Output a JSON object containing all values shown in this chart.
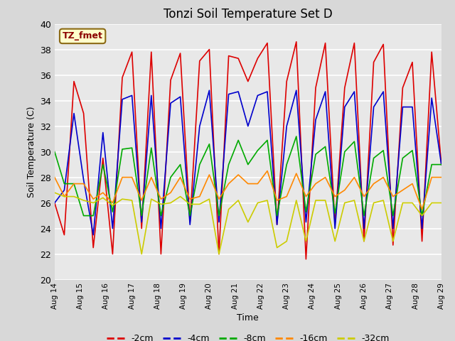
{
  "title": "Tonzi Soil Temperature Set D",
  "xlabel": "Time",
  "ylabel": "Soil Temperature (C)",
  "ylim": [
    20,
    40
  ],
  "background_color": "#e8e8e8",
  "legend_label": "TZ_fmet",
  "x_tick_labels": [
    "Aug 14",
    "Aug 15",
    "Aug 16",
    "Aug 17",
    "Aug 18",
    "Aug 19",
    "Aug 20",
    "Aug 21",
    "Aug 22",
    "Aug 23",
    "Aug 24",
    "Aug 25",
    "Aug 26",
    "Aug 27",
    "Aug 28",
    "Aug 29"
  ],
  "series": {
    "-2cm": {
      "color": "#dd0000",
      "data": [
        26.0,
        23.5,
        35.5,
        33.0,
        22.5,
        29.5,
        22.0,
        35.8,
        37.8,
        24.0,
        37.8,
        22.0,
        35.6,
        37.7,
        24.5,
        37.1,
        38.0,
        22.0,
        37.5,
        37.3,
        35.5,
        37.3,
        38.5,
        24.3,
        35.5,
        38.6,
        21.6,
        35.0,
        38.5,
        24.3,
        35.0,
        38.5,
        23.0,
        37.0,
        38.4,
        22.7,
        35.0,
        37.0,
        23.0,
        37.8,
        29.0
      ]
    },
    "-4cm": {
      "color": "#0000cc",
      "data": [
        26.0,
        27.0,
        33.0,
        27.8,
        23.5,
        31.5,
        24.0,
        34.1,
        34.4,
        24.5,
        34.4,
        24.0,
        33.8,
        34.3,
        24.3,
        32.0,
        34.8,
        24.5,
        34.5,
        34.7,
        32.0,
        34.4,
        34.7,
        24.3,
        32.0,
        34.8,
        24.5,
        32.5,
        34.7,
        24.0,
        33.5,
        34.7,
        24.0,
        33.5,
        34.7,
        24.0,
        33.5,
        33.5,
        24.0,
        34.2,
        29.0
      ]
    },
    "-8cm": {
      "color": "#00aa00",
      "data": [
        30.0,
        27.5,
        27.5,
        25.0,
        25.0,
        29.0,
        25.3,
        30.2,
        30.3,
        25.0,
        30.3,
        25.0,
        28.0,
        29.0,
        25.0,
        29.0,
        30.6,
        25.0,
        29.0,
        30.9,
        29.0,
        30.1,
        30.9,
        25.0,
        29.0,
        31.2,
        25.3,
        29.8,
        30.4,
        25.2,
        30.0,
        30.8,
        25.0,
        29.5,
        30.1,
        25.0,
        29.5,
        30.1,
        25.0,
        29.0,
        29.0
      ]
    },
    "-16cm": {
      "color": "#ff8800",
      "data": [
        28.0,
        26.5,
        27.5,
        27.5,
        26.3,
        26.8,
        26.0,
        28.0,
        28.0,
        26.2,
        28.0,
        26.3,
        26.8,
        28.0,
        26.3,
        26.5,
        28.2,
        26.3,
        27.5,
        28.2,
        27.5,
        27.5,
        28.5,
        26.2,
        26.5,
        28.3,
        26.5,
        27.5,
        28.0,
        26.5,
        27.0,
        28.0,
        26.5,
        27.5,
        28.0,
        26.5,
        27.0,
        27.5,
        25.5,
        28.0,
        28.0
      ]
    },
    "-32cm": {
      "color": "#cccc00",
      "data": [
        26.8,
        26.5,
        26.5,
        26.2,
        26.0,
        26.4,
        25.8,
        26.3,
        26.2,
        22.0,
        26.3,
        25.9,
        26.0,
        26.5,
        25.9,
        25.9,
        26.3,
        22.0,
        25.5,
        26.2,
        24.5,
        26.0,
        26.2,
        22.5,
        23.0,
        26.2,
        23.0,
        26.2,
        26.2,
        23.0,
        26.0,
        26.2,
        23.0,
        26.0,
        26.2,
        23.0,
        26.0,
        26.0,
        25.0,
        26.0,
        26.0
      ]
    }
  }
}
